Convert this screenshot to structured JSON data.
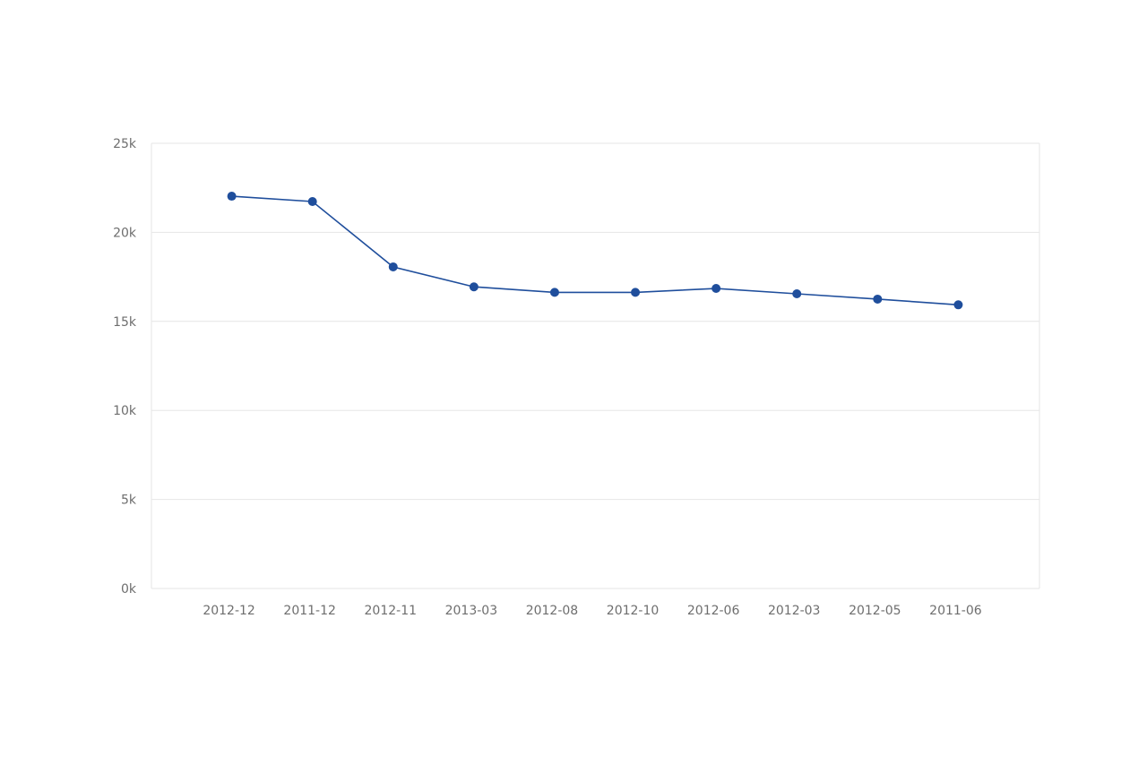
{
  "chart_data": {
    "type": "line",
    "title": "",
    "xlabel": "",
    "ylabel": "",
    "categories": [
      "2012-12",
      "2011-12",
      "2012-11",
      "2013-03",
      "2012-08",
      "2012-10",
      "2012-06",
      "2012-03",
      "2012-05",
      "2011-06"
    ],
    "series": [
      {
        "name": "",
        "color": "#1f4e9c",
        "values": [
          22030,
          21730,
          18060,
          16940,
          16630,
          16630,
          16850,
          16550,
          16250,
          15930
        ]
      }
    ],
    "ylim": [
      0,
      25000
    ],
    "yticks": [
      0,
      5000,
      10000,
      15000,
      20000,
      25000
    ],
    "ytick_labels": [
      "0k",
      "5k",
      "10k",
      "15k",
      "20k",
      "25k"
    ],
    "grid": true,
    "legend": null
  },
  "colors": {
    "line": "#1f4e9c",
    "marker": "#1f4e9c",
    "grid": "#e6e6e6",
    "axis_text": "#6e6e6e"
  }
}
